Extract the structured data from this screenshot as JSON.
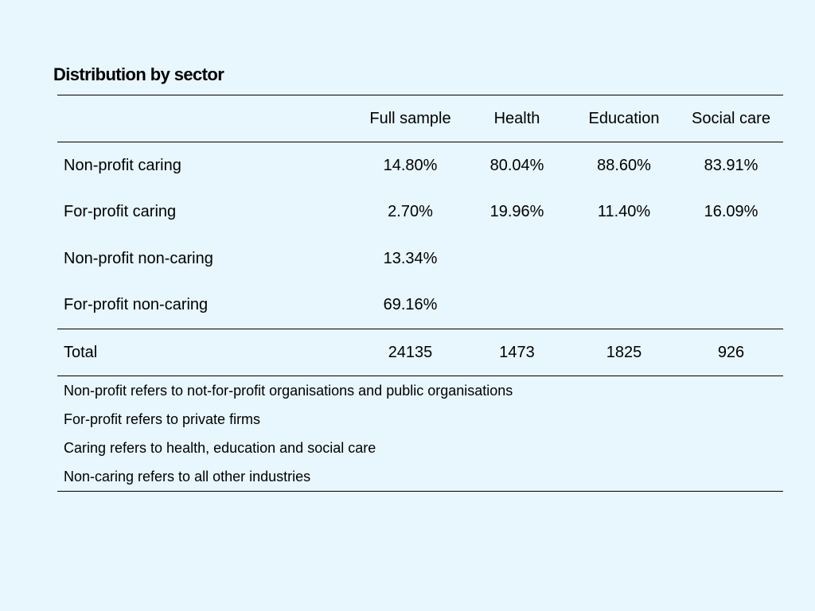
{
  "title": "Distribution by sector",
  "table": {
    "columns": [
      "",
      "Full sample",
      "Health",
      "Education",
      "Social care"
    ],
    "rows": [
      {
        "label": "Non-profit caring",
        "full_sample": "14.80%",
        "health": "80.04%",
        "education": "88.60%",
        "social_care": "83.91%"
      },
      {
        "label": "For-profit caring",
        "full_sample": "2.70%",
        "health": "19.96%",
        "education": "11.40%",
        "social_care": "16.09%"
      },
      {
        "label": "Non-profit non-caring",
        "full_sample": "13.34%",
        "health": "",
        "education": "",
        "social_care": ""
      },
      {
        "label": "For-profit non-caring",
        "full_sample": "69.16%",
        "health": "",
        "education": "",
        "social_care": ""
      }
    ],
    "total": {
      "label": "Total",
      "full_sample": "24135",
      "health": "1473",
      "education": "1825",
      "social_care": "926"
    },
    "notes": [
      "Non-profit refers to not-for-profit organisations and public organisations",
      "For-profit refers to private firms",
      "Caring refers to health, education and social care",
      "Non-caring refers to all other industries"
    ]
  },
  "colors": {
    "background": "#e8f6fd",
    "text": "#000000",
    "rule": "#000000"
  }
}
